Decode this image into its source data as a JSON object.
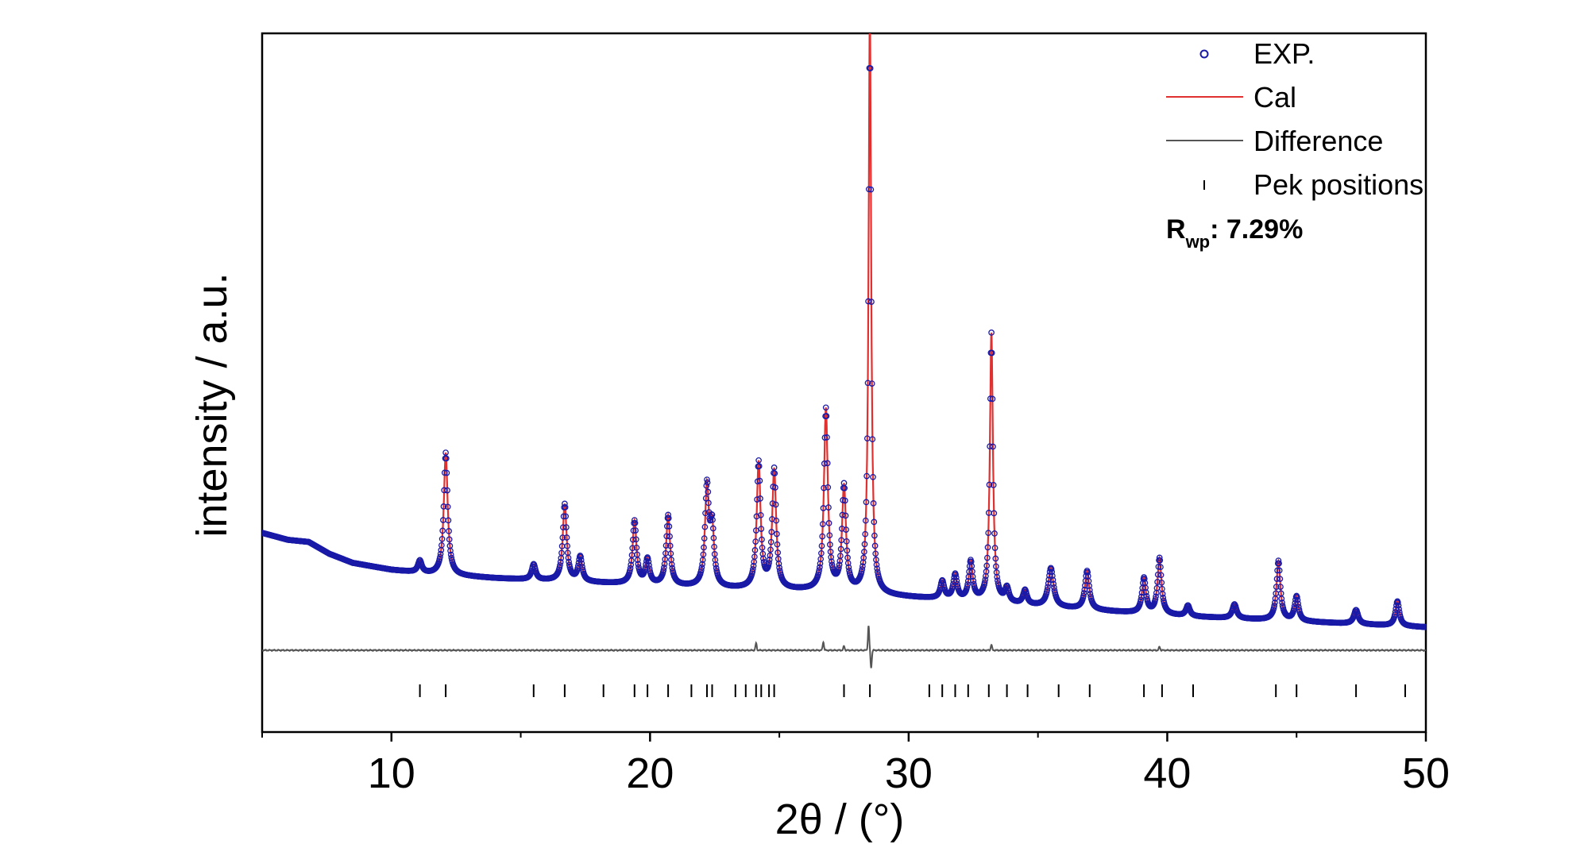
{
  "chart_data": {
    "type": "line",
    "title": "",
    "xlabel": "2θ / (°)",
    "ylabel": "intensity / a.u.",
    "xlim": [
      5,
      50
    ],
    "x_ticks": [
      10,
      20,
      30,
      40,
      50
    ],
    "y_ticks_shown": false,
    "grid": false,
    "legend_placement": "top-right",
    "annotation": {
      "label_main": "R",
      "label_sub": "wp",
      "label_value": ": 7.29%"
    },
    "colors": {
      "exp": "#1a1aa8",
      "cal": "#e03030",
      "difference": "#555555",
      "peak_ticks": "#000000"
    },
    "background": [
      [
        5,
        0.285
      ],
      [
        6,
        0.275
      ],
      [
        6.8,
        0.272
      ],
      [
        7.6,
        0.255
      ],
      [
        8.5,
        0.242
      ],
      [
        10,
        0.232
      ],
      [
        11.5,
        0.226
      ],
      [
        14,
        0.22
      ],
      [
        17,
        0.215
      ],
      [
        20,
        0.21
      ],
      [
        23,
        0.205
      ],
      [
        26,
        0.202
      ],
      [
        29,
        0.195
      ],
      [
        32,
        0.188
      ],
      [
        35,
        0.18
      ],
      [
        38,
        0.172
      ],
      [
        41,
        0.165
      ],
      [
        44,
        0.16
      ],
      [
        47,
        0.155
      ],
      [
        50,
        0.15
      ]
    ],
    "peaks": [
      [
        11.1,
        0.017,
        0.09
      ],
      [
        12.1,
        0.175,
        0.09
      ],
      [
        15.5,
        0.022,
        0.09
      ],
      [
        16.7,
        0.11,
        0.09
      ],
      [
        17.3,
        0.035,
        0.09
      ],
      [
        19.4,
        0.09,
        0.09
      ],
      [
        19.9,
        0.035,
        0.09
      ],
      [
        20.7,
        0.1,
        0.09
      ],
      [
        22.2,
        0.14,
        0.09
      ],
      [
        22.4,
        0.08,
        0.09
      ],
      [
        24.2,
        0.18,
        0.09
      ],
      [
        24.8,
        0.17,
        0.09
      ],
      [
        26.8,
        0.26,
        0.09
      ],
      [
        27.5,
        0.15,
        0.09
      ],
      [
        28.5,
        0.835,
        0.06
      ],
      [
        31.3,
        0.025,
        0.09
      ],
      [
        31.8,
        0.035,
        0.09
      ],
      [
        32.4,
        0.055,
        0.09
      ],
      [
        33.2,
        0.385,
        0.07
      ],
      [
        33.8,
        0.02,
        0.09
      ],
      [
        34.5,
        0.02,
        0.09
      ],
      [
        35.5,
        0.055,
        0.12
      ],
      [
        36.9,
        0.055,
        0.1
      ],
      [
        39.1,
        0.05,
        0.09
      ],
      [
        39.7,
        0.08,
        0.09
      ],
      [
        40.8,
        0.015,
        0.09
      ],
      [
        42.6,
        0.02,
        0.1
      ],
      [
        44.3,
        0.085,
        0.09
      ],
      [
        45.0,
        0.035,
        0.09
      ],
      [
        47.3,
        0.02,
        0.1
      ],
      [
        48.9,
        0.035,
        0.09
      ]
    ],
    "peak_positions": [
      11.1,
      12.1,
      15.5,
      16.7,
      18.2,
      19.4,
      19.9,
      20.7,
      21.6,
      22.2,
      22.4,
      23.3,
      23.7,
      24.1,
      24.3,
      24.6,
      24.8,
      27.5,
      28.5,
      30.8,
      31.3,
      31.8,
      32.3,
      33.1,
      33.8,
      34.6,
      35.8,
      37.0,
      39.1,
      39.8,
      41.0,
      44.2,
      45.0,
      47.3,
      49.2
    ],
    "difference_spikes": [
      [
        24.1,
        0.01
      ],
      [
        26.7,
        0.012
      ],
      [
        27.5,
        0.006
      ],
      [
        28.45,
        0.035
      ],
      [
        28.55,
        -0.025
      ],
      [
        33.2,
        0.008
      ],
      [
        39.7,
        0.005
      ]
    ],
    "series": [
      {
        "name": "EXP."
      },
      {
        "name": "Cal"
      },
      {
        "name": "Difference"
      },
      {
        "name": "Pek positions"
      }
    ]
  }
}
